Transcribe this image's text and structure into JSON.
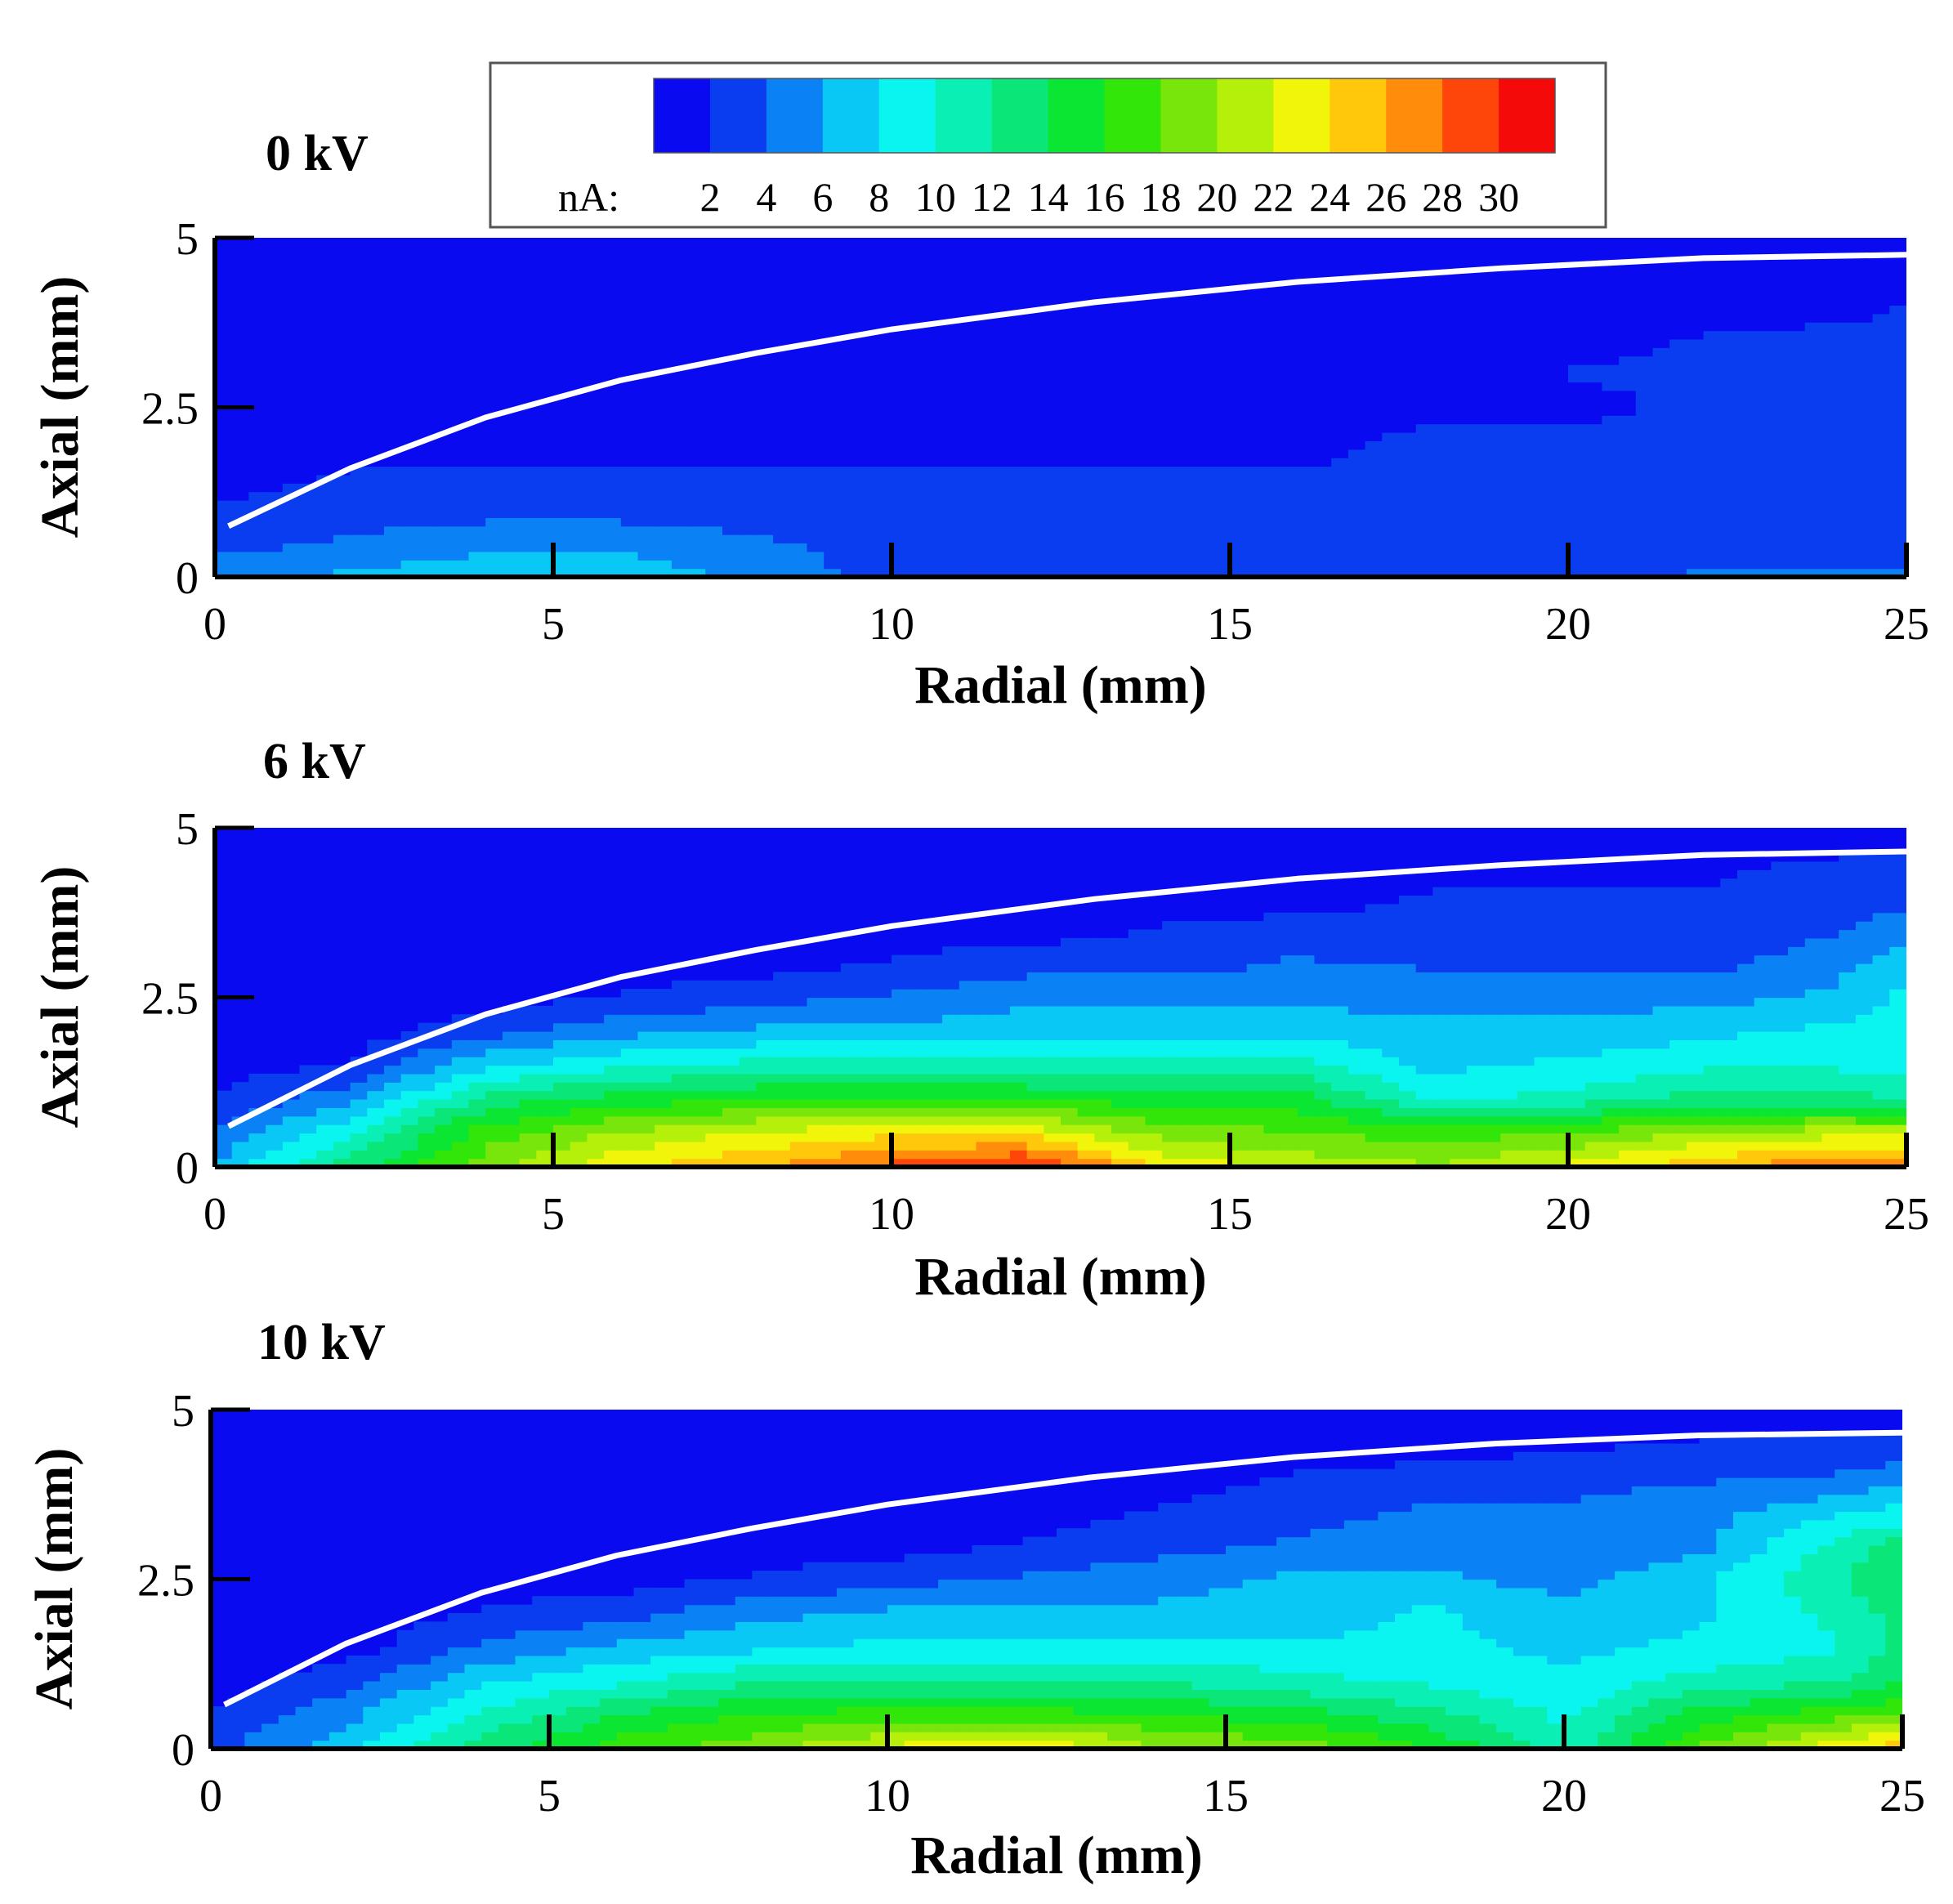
{
  "figure": {
    "colorbar": {
      "unit_label": "nA:",
      "levels": [
        "2",
        "4",
        "6",
        "8",
        "10",
        "12",
        "14",
        "16",
        "18",
        "20",
        "22",
        "24",
        "26",
        "28",
        "30"
      ],
      "colors": [
        "#0a0af0",
        "#0a3cf0",
        "#0a82f5",
        "#0ac8f5",
        "#0af5f0",
        "#0af0b4",
        "#0ae678",
        "#0ae632",
        "#32e60a",
        "#78e60a",
        "#b4f00a",
        "#f0f50a",
        "#ffc80a",
        "#ff8c0a",
        "#ff460a",
        "#f50a0a"
      ]
    },
    "panels": [
      {
        "title": "0 kV",
        "xlabel": "Radial (mm)",
        "ylabel": "Axial (mm)"
      },
      {
        "title": "6 kV",
        "xlabel": "Radial (mm)",
        "ylabel": "Axial (mm)"
      },
      {
        "title": "10 kV",
        "xlabel": "Radial (mm)",
        "ylabel": "Axial (mm)"
      }
    ]
  },
  "chart_data": [
    {
      "type": "heatmap",
      "title": "0 kV",
      "xlabel": "Radial (mm)",
      "ylabel": "Axial (mm)",
      "xlim": [
        0,
        25
      ],
      "ylim": [
        0,
        5
      ],
      "x_ticks": [
        "0",
        "5",
        "10",
        "15",
        "20",
        "25"
      ],
      "y_ticks": [
        "0",
        "2.5",
        "5"
      ],
      "colorbar_unit": "nA",
      "colorbar_range": [
        0,
        30
      ],
      "x": [
        0,
        2,
        4,
        6,
        8,
        10,
        12,
        14,
        16,
        18,
        20,
        22,
        24,
        25
      ],
      "y": [
        0,
        0.5,
        1,
        1.5,
        2,
        2.5,
        3,
        3.5,
        4,
        4.5,
        5
      ],
      "z": [
        [
          5,
          6,
          7,
          7,
          5,
          3,
          3,
          3,
          3,
          3,
          3,
          4,
          4,
          4
        ],
        [
          3,
          4,
          5,
          5,
          4,
          3,
          3,
          3,
          2.5,
          2.5,
          2.5,
          3,
          3,
          3
        ],
        [
          2,
          3,
          3,
          3,
          3,
          3,
          3,
          3,
          2,
          2,
          2,
          2,
          3,
          3
        ],
        [
          1,
          2,
          2,
          2,
          2,
          2,
          2,
          2,
          2,
          3,
          3,
          3,
          3,
          3
        ],
        [
          1,
          1,
          1,
          1,
          1,
          1,
          1,
          1,
          1,
          2.5,
          2.5,
          3.5,
          3,
          3
        ],
        [
          1,
          1,
          1,
          1,
          1,
          1,
          1,
          1,
          1,
          1,
          1,
          2.5,
          2.5,
          2.5
        ],
        [
          1,
          1,
          1,
          1,
          1,
          1,
          1,
          1,
          1,
          1,
          2,
          2.5,
          2.5,
          2.5
        ],
        [
          1,
          1,
          1,
          1,
          1,
          1,
          1,
          1,
          1,
          1,
          1,
          2,
          2.5,
          2.5
        ],
        [
          1,
          1,
          1,
          1,
          1,
          1,
          1,
          1,
          1,
          1,
          1,
          1,
          1,
          2
        ],
        [
          1,
          1,
          1,
          1,
          1,
          1,
          1,
          1,
          1,
          1,
          1,
          1,
          1,
          1
        ],
        [
          1,
          1,
          1,
          1,
          1,
          1,
          1,
          1,
          1,
          1,
          1,
          1,
          1,
          1
        ]
      ],
      "boundary_curve": {
        "x": [
          0.2,
          2,
          4,
          6,
          8,
          10,
          13,
          16,
          19,
          22,
          25
        ],
        "y": [
          0.75,
          1.6,
          2.35,
          2.9,
          3.3,
          3.65,
          4.05,
          4.35,
          4.55,
          4.7,
          4.75
        ]
      }
    },
    {
      "type": "heatmap",
      "title": "6 kV",
      "xlabel": "Radial (mm)",
      "ylabel": "Axial (mm)",
      "xlim": [
        0,
        25
      ],
      "ylim": [
        0,
        5
      ],
      "x_ticks": [
        "0",
        "5",
        "10",
        "15",
        "20",
        "25"
      ],
      "y_ticks": [
        "0",
        "2.5",
        "5"
      ],
      "colorbar_unit": "nA",
      "colorbar_range": [
        0,
        30
      ],
      "x": [
        0,
        2,
        4,
        6,
        8,
        10,
        12,
        14,
        16,
        18,
        20,
        22,
        24,
        25
      ],
      "y": [
        0,
        0.5,
        1,
        1.5,
        2,
        2.5,
        3,
        3.5,
        4,
        4.5,
        5
      ],
      "z": [
        [
          6,
          12,
          18,
          22,
          24,
          27,
          29,
          22,
          20,
          19,
          21,
          24,
          26,
          26
        ],
        [
          4,
          9,
          16,
          19,
          21,
          22,
          22,
          18,
          17,
          16,
          17,
          19,
          20,
          20
        ],
        [
          2,
          5,
          12,
          14,
          15,
          15,
          15,
          14,
          14,
          9,
          10,
          12,
          12,
          11
        ],
        [
          1,
          2,
          7,
          9,
          10,
          10,
          10,
          10,
          10,
          7,
          8,
          9,
          9,
          9
        ],
        [
          1,
          1,
          3,
          5,
          6,
          6,
          7,
          7,
          7,
          6,
          6,
          7,
          8,
          8
        ],
        [
          1,
          1,
          1,
          2,
          3,
          4,
          5,
          5,
          5,
          5,
          5,
          5,
          6,
          8
        ],
        [
          1,
          1,
          1,
          1,
          1,
          2,
          3,
          3,
          4,
          3.5,
          3,
          3,
          5,
          7
        ],
        [
          1,
          1,
          1,
          1,
          1,
          1,
          1,
          2,
          2.5,
          2.5,
          2.5,
          2.5,
          3.5,
          5
        ],
        [
          1,
          1,
          1,
          1,
          1,
          1,
          1,
          1,
          1,
          2,
          2,
          2,
          3,
          3
        ],
        [
          1,
          1,
          1,
          1,
          1,
          1,
          1,
          1,
          1,
          1,
          1,
          1.5,
          2,
          2
        ],
        [
          1,
          1,
          1,
          1,
          1,
          1,
          1,
          1,
          1,
          1,
          1,
          1,
          1,
          1
        ]
      ],
      "boundary_curve": {
        "x": [
          0.2,
          2,
          4,
          6,
          8,
          10,
          13,
          16,
          19,
          22,
          25
        ],
        "y": [
          0.6,
          1.5,
          2.25,
          2.8,
          3.2,
          3.55,
          3.95,
          4.25,
          4.45,
          4.6,
          4.65
        ]
      }
    },
    {
      "type": "heatmap",
      "title": "10 kV",
      "xlabel": "Radial (mm)",
      "ylabel": "Axial (mm)",
      "xlim": [
        0,
        25
      ],
      "ylim": [
        0,
        5
      ],
      "x_ticks": [
        "0",
        "5",
        "10",
        "15",
        "20",
        "25"
      ],
      "y_ticks": [
        "0",
        "2.5",
        "5"
      ],
      "colorbar_unit": "nA",
      "colorbar_range": [
        0,
        30
      ],
      "x": [
        0,
        2,
        4,
        6,
        8,
        10,
        12,
        14,
        16,
        18,
        20,
        22,
        24,
        25
      ],
      "y": [
        0,
        0.5,
        1,
        1.5,
        2,
        2.5,
        3,
        3.5,
        4,
        4.5,
        5
      ],
      "z": [
        [
          3,
          7,
          12,
          16,
          18,
          21,
          23,
          19,
          18,
          15,
          10,
          17,
          22,
          24
        ],
        [
          2,
          5,
          10,
          13,
          15,
          16,
          16,
          15,
          14,
          12,
          9,
          14,
          16,
          17
        ],
        [
          1,
          3,
          7,
          9,
          11,
          11,
          11,
          11,
          10,
          9,
          8,
          10,
          11,
          13
        ],
        [
          1,
          1,
          4,
          6,
          7,
          8,
          8,
          8,
          8,
          8,
          7,
          8,
          9,
          12
        ],
        [
          1,
          1,
          2,
          3,
          5,
          6,
          6,
          6,
          6,
          8,
          6,
          7,
          10,
          12
        ],
        [
          1,
          1,
          1,
          1,
          2,
          3,
          4,
          5,
          6,
          6,
          5,
          7,
          11,
          13
        ],
        [
          1,
          1,
          1,
          1,
          1,
          1,
          2,
          3,
          4,
          5,
          4,
          5,
          10,
          12
        ],
        [
          1,
          1,
          1,
          1,
          1,
          1,
          1,
          2,
          3,
          4,
          4,
          5,
          7,
          8
        ],
        [
          1,
          1,
          1,
          1,
          1,
          1,
          1,
          1,
          2,
          2.5,
          3,
          3.5,
          4,
          5
        ],
        [
          1,
          1,
          1,
          1,
          1,
          1,
          1,
          1,
          1,
          1,
          1.5,
          2,
          2,
          2
        ],
        [
          1,
          1,
          1,
          1,
          1,
          1,
          1,
          1,
          1,
          1,
          1,
          1,
          1,
          1
        ]
      ],
      "boundary_curve": {
        "x": [
          0.2,
          2,
          4,
          6,
          8,
          10,
          13,
          16,
          19,
          22,
          25
        ],
        "y": [
          0.65,
          1.55,
          2.3,
          2.85,
          3.25,
          3.6,
          4.0,
          4.3,
          4.5,
          4.62,
          4.66
        ]
      }
    }
  ]
}
